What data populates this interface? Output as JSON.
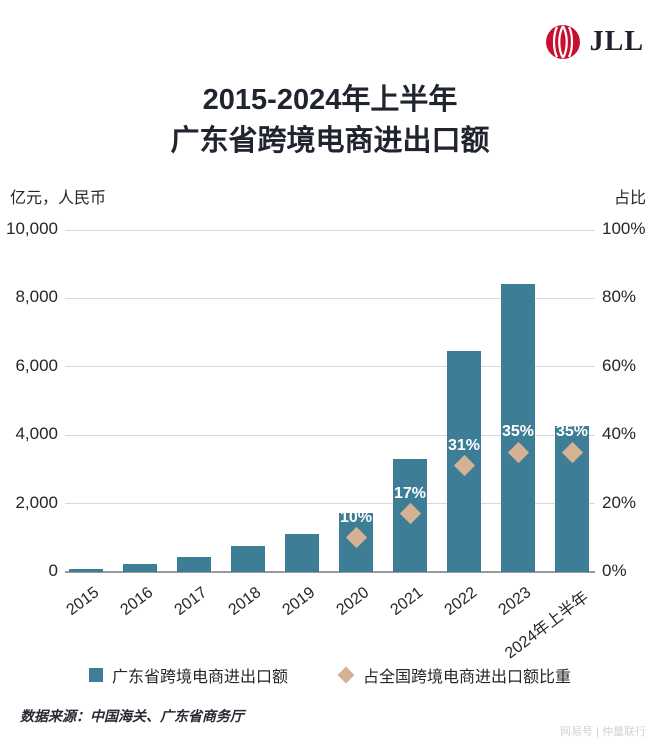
{
  "brand": {
    "logo_text": "JLL",
    "logo_red": "#c8102e"
  },
  "title": {
    "line1": "2015-2024年上半年",
    "line2": "广东省跨境电商进出口额"
  },
  "axes": {
    "left_unit": "亿元，人民币",
    "right_unit": "占比"
  },
  "chart_data": {
    "type": "bar",
    "title": "2015-2024年上半年广东省跨境电商进出口额",
    "categories": [
      "2015",
      "2016",
      "2017",
      "2018",
      "2019",
      "2020",
      "2021",
      "2022",
      "2023",
      "2024年上半年"
    ],
    "series": [
      {
        "name": "广东省跨境电商进出口额",
        "type": "bar",
        "unit": "亿元",
        "values": [
          100,
          230,
          440,
          760,
          1110,
          1730,
          3310,
          6450,
          8430,
          4270
        ]
      },
      {
        "name": "占全国跨境电商进出口额比重",
        "type": "scatter",
        "unit": "%",
        "values": [
          null,
          null,
          null,
          null,
          null,
          10,
          17,
          31,
          35,
          35
        ],
        "labels": [
          "",
          "",
          "",
          "",
          "",
          "10%",
          "17%",
          "31%",
          "35%",
          "35%"
        ]
      }
    ],
    "left_axis": {
      "label": "亿元，人民币",
      "min": 0,
      "max": 10000,
      "ticks": [
        "0",
        "2,000",
        "4,000",
        "6,000",
        "8,000",
        "10,000"
      ]
    },
    "right_axis": {
      "label": "占比",
      "min": 0,
      "max": 100,
      "ticks": [
        "0%",
        "20%",
        "40%",
        "60%",
        "80%",
        "100%"
      ]
    },
    "grid": true,
    "legend_position": "bottom",
    "bar_color": "#3d7d96",
    "diamond_color": "#d6b294"
  },
  "legend": {
    "items": [
      {
        "label": "广东省跨境电商进出口额",
        "marker": "square",
        "color": "#3d7d96"
      },
      {
        "label": "占全国跨境电商进出口额比重",
        "marker": "diamond",
        "color": "#d6b294"
      }
    ]
  },
  "footer": {
    "source": "数据来源：中国海关、广东省商务厅",
    "watermark": "网易号 | 仲量联行"
  }
}
